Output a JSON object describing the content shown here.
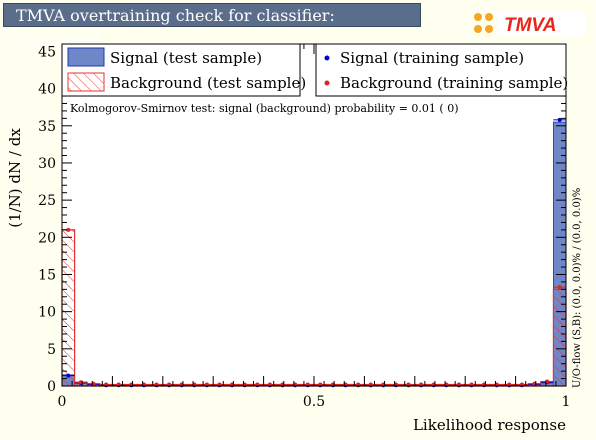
{
  "header": {
    "title": "TMVA overtraining check for classifier: Likelihood"
  },
  "logo": {
    "text": "TMVA"
  },
  "chart_data": {
    "type": "bar",
    "xlabel": "Likelihood response",
    "ylabel": "(1/N) dN / dx",
    "xlim": [
      0,
      1
    ],
    "ylim": [
      0,
      46
    ],
    "x_ticks": [
      "0",
      "0.5",
      "1"
    ],
    "y_ticks": [
      "0",
      "5",
      "10",
      "15",
      "20",
      "25",
      "30",
      "35",
      "40",
      "45"
    ],
    "bin_count": 40,
    "legend": [
      {
        "label": "Signal (test sample)"
      },
      {
        "label": "Background (test sample)"
      },
      {
        "label": "Signal (training sample)"
      },
      {
        "label": "Background (training sample)"
      }
    ],
    "ks_text": "Kolmogorov-Smirnov test: signal (background) probability =  0.01 (    0)",
    "overflow_text": "U/O-flow (S,B): (0.0, 0.0)% / (0.0, 0.0)%",
    "series": [
      {
        "name": "Signal (test sample)",
        "style": "filled",
        "color": "#6f86c9",
        "values": [
          1.5,
          0.4,
          0.2,
          0.1,
          0.1,
          0.1,
          0.1,
          0.1,
          0.1,
          0.1,
          0.1,
          0.1,
          0.1,
          0.1,
          0.1,
          0.1,
          0.1,
          0.1,
          0.1,
          0.1,
          0.1,
          0.1,
          0.1,
          0.1,
          0.1,
          0.1,
          0.1,
          0.1,
          0.1,
          0.1,
          0.1,
          0.1,
          0.1,
          0.1,
          0.1,
          0.1,
          0.1,
          0.2,
          0.4,
          35.5
        ]
      },
      {
        "name": "Background (test sample)",
        "style": "hatched",
        "color": "#e53333",
        "values": [
          21.0,
          0.5,
          0.3,
          0.2,
          0.2,
          0.2,
          0.2,
          0.2,
          0.2,
          0.2,
          0.2,
          0.2,
          0.2,
          0.2,
          0.2,
          0.2,
          0.2,
          0.2,
          0.2,
          0.2,
          0.2,
          0.2,
          0.2,
          0.2,
          0.2,
          0.2,
          0.2,
          0.2,
          0.2,
          0.2,
          0.2,
          0.2,
          0.2,
          0.2,
          0.2,
          0.2,
          0.2,
          0.3,
          0.6,
          13.0
        ]
      },
      {
        "name": "Signal (training sample)",
        "style": "points",
        "color": "#0000cc",
        "values": [
          1.4,
          0.4,
          0.2,
          0.1,
          0.1,
          0.1,
          0.1,
          0.1,
          0.1,
          0.1,
          0.1,
          0.1,
          0.1,
          0.1,
          0.1,
          0.1,
          0.1,
          0.1,
          0.1,
          0.1,
          0.1,
          0.1,
          0.1,
          0.1,
          0.1,
          0.1,
          0.1,
          0.1,
          0.1,
          0.1,
          0.1,
          0.1,
          0.1,
          0.1,
          0.1,
          0.1,
          0.1,
          0.2,
          0.5,
          35.8
        ]
      },
      {
        "name": "Background (training sample)",
        "style": "points",
        "color": "#dd2222",
        "values": [
          21.0,
          0.5,
          0.3,
          0.2,
          0.2,
          0.2,
          0.2,
          0.2,
          0.2,
          0.2,
          0.2,
          0.2,
          0.2,
          0.2,
          0.2,
          0.2,
          0.2,
          0.2,
          0.2,
          0.2,
          0.2,
          0.2,
          0.2,
          0.2,
          0.2,
          0.2,
          0.2,
          0.2,
          0.2,
          0.2,
          0.2,
          0.2,
          0.2,
          0.2,
          0.2,
          0.2,
          0.2,
          0.3,
          0.6,
          13.3
        ]
      }
    ]
  }
}
